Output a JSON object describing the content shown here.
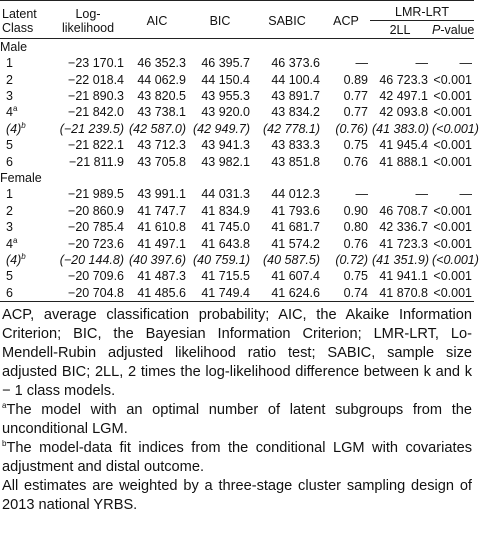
{
  "table": {
    "header": {
      "class": "Latent Class",
      "loglik": "Log-likelihood",
      "aic": "AIC",
      "bic": "BIC",
      "sabic": "SABIC",
      "acp": "ACP",
      "lmr": "LMR-LRT",
      "ll2": "2LL",
      "p_italic": "P",
      "p_rest": "-value"
    },
    "sections": [
      {
        "label": "Male",
        "rows": [
          {
            "class": "1",
            "cells": [
              "−23 170.1",
              "46 352.3",
              "46 395.7",
              "46 373.6",
              "—",
              "—",
              "—"
            ]
          },
          {
            "class": "2",
            "cells": [
              "−22 018.4",
              "44 062.9",
              "44 150.4",
              "44 100.4",
              "0.89",
              "46 723.3",
              "<0.001"
            ]
          },
          {
            "class": "3",
            "cells": [
              "−21 890.3",
              "43 820.5",
              "43 955.3",
              "43 891.7",
              "0.77",
              "42 497.1",
              "<0.001"
            ]
          },
          {
            "class": "4",
            "sup": "a",
            "cells": [
              "−21 842.0",
              "43 738.1",
              "43 920.0",
              "43 834.2",
              "0.77",
              "42 093.8",
              "<0.001"
            ]
          },
          {
            "class": "(4)",
            "sup": "b",
            "cells": [
              "(−21 239.5)",
              "(42 587.0)",
              "(42 949.7)",
              "(42 778.1)",
              "(0.76)",
              "(41 383.0)",
              "(<0.001)"
            ]
          },
          {
            "class": "5",
            "cells": [
              "−21 822.1",
              "43 712.3",
              "43 941.3",
              "43 833.3",
              "0.75",
              "41 945.4",
              "<0.001"
            ]
          },
          {
            "class": "6",
            "cells": [
              "−21 811.9",
              "43 705.8",
              "43 982.1",
              "43 851.8",
              "0.76",
              "41 888.1",
              "<0.001"
            ]
          }
        ]
      },
      {
        "label": "Female",
        "rows": [
          {
            "class": "1",
            "cells": [
              "−21 989.5",
              "43 991.1",
              "44 031.3",
              "44 012.3",
              "—",
              "—",
              "—"
            ]
          },
          {
            "class": "2",
            "cells": [
              "−20 860.9",
              "41 747.7",
              "41 834.9",
              "41 793.6",
              "0.90",
              "46 708.7",
              "<0.001"
            ]
          },
          {
            "class": "3",
            "cells": [
              "−20 785.4",
              "41 610.8",
              "41 745.0",
              "41 681.7",
              "0.80",
              "42 336.7",
              "<0.001"
            ]
          },
          {
            "class": "4",
            "sup": "a",
            "cells": [
              "−20 723.6",
              "41 497.1",
              "41 643.8",
              "41 574.2",
              "0.76",
              "41 723.3",
              "<0.001"
            ]
          },
          {
            "class": "(4)",
            "sup": "b",
            "cells": [
              "(−20 144.8)",
              "(40 397.6)",
              "(40 759.1)",
              "(40 587.5)",
              "(0.72)",
              "(41 351.9)",
              "(<0.001)"
            ]
          },
          {
            "class": "5",
            "cells": [
              "−20 709.6",
              "41 487.3",
              "41 715.5",
              "41 607.4",
              "0.75",
              "41 941.1",
              "<0.001"
            ]
          },
          {
            "class": "6",
            "cells": [
              "−20 704.8",
              "41 485.6",
              "41 749.4",
              "41 624.6",
              "0.74",
              "41 870.8",
              "<0.001"
            ]
          }
        ]
      }
    ]
  },
  "notes": [
    {
      "text": "ACP, average classification probability; AIC, the Akaike Information Criterion; BIC, the Bayesian Information Criterion; LMR-LRT, Lo-Mendell-Rubin adjusted likelihood ratio test; SABIC, sample size adjusted BIC; 2LL, 2 times the log-likelihood difference between k and k − 1 class models."
    },
    {
      "sup": "a",
      "text": "The model with an optimal number of latent subgroups from the unconditional LGM."
    },
    {
      "sup": "b",
      "text": "The model-data fit indices from the conditional LGM with covariates adjustment and distal outcome."
    },
    {
      "text": "All estimates are weighted by a three-stage cluster sampling design of 2013 national YRBS."
    }
  ]
}
